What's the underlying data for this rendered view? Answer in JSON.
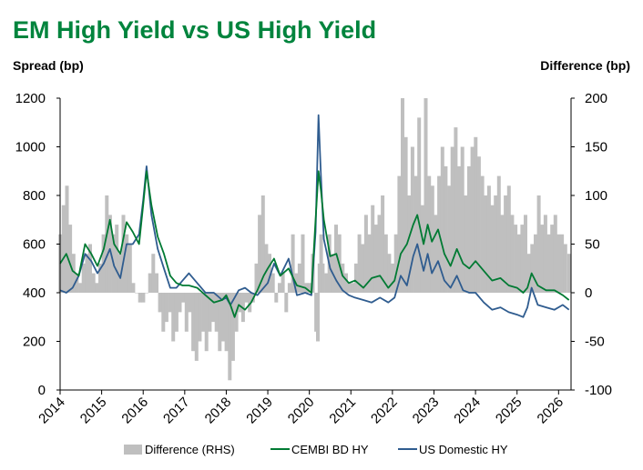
{
  "colors": {
    "title": "#00843D",
    "difference": "#BFBFBF",
    "cembi": "#007A33",
    "us_hy": "#2F5C8F",
    "axis": "#000000"
  },
  "chart_data": {
    "type": "line",
    "title": "EM High Yield vs US High Yield",
    "left_axis_title": "Spread (bp)",
    "right_axis_title": "Difference (bp)",
    "left_ylim": [
      0,
      1200
    ],
    "right_ylim": [
      -100,
      200
    ],
    "left_ticks": [
      "0",
      "200",
      "400",
      "600",
      "800",
      "1000",
      "1200"
    ],
    "right_ticks": [
      "-100",
      "-50",
      "0",
      "50",
      "100",
      "150",
      "200"
    ],
    "x_range": [
      2014,
      2026.3
    ],
    "x_ticks": [
      "2014",
      "2015",
      "2016",
      "2017",
      "2018",
      "2019",
      "2020",
      "2021",
      "2022",
      "2023",
      "2024",
      "2025",
      "2026"
    ],
    "legend": [
      "Difference (RHS)",
      "CEMBI BD HY",
      "US Domestic HY"
    ],
    "series": [
      {
        "name": "CEMBI BD HY",
        "axis": "left",
        "x": [
          2014.0,
          2014.15,
          2014.3,
          2014.45,
          2014.6,
          2014.75,
          2014.9,
          2015.05,
          2015.2,
          2015.3,
          2015.45,
          2015.6,
          2015.75,
          2015.9,
          2016.0,
          2016.08,
          2016.2,
          2016.35,
          2016.5,
          2016.65,
          2016.8,
          2016.95,
          2017.1,
          2017.3,
          2017.5,
          2017.7,
          2017.9,
          2018.0,
          2018.1,
          2018.2,
          2018.3,
          2018.45,
          2018.6,
          2018.75,
          2018.9,
          2019.0,
          2019.15,
          2019.3,
          2019.5,
          2019.7,
          2019.9,
          2020.05,
          2020.15,
          2020.22,
          2020.28,
          2020.35,
          2020.5,
          2020.65,
          2020.8,
          2020.95,
          2021.1,
          2021.3,
          2021.5,
          2021.7,
          2021.9,
          2022.05,
          2022.2,
          2022.35,
          2022.5,
          2022.6,
          2022.75,
          2022.85,
          2022.95,
          2023.1,
          2023.25,
          2023.4,
          2023.55,
          2023.7,
          2023.85,
          2024.0,
          2024.2,
          2024.4,
          2024.6,
          2024.8,
          2025.0,
          2025.15,
          2025.25,
          2025.35,
          2025.5,
          2025.7,
          2025.9,
          2026.1,
          2026.25
        ],
        "values": [
          520,
          560,
          490,
          470,
          600,
          560,
          510,
          580,
          700,
          600,
          560,
          690,
          650,
          600,
          760,
          900,
          760,
          630,
          560,
          470,
          440,
          430,
          430,
          420,
          390,
          360,
          370,
          390,
          350,
          300,
          350,
          330,
          360,
          410,
          470,
          500,
          540,
          470,
          500,
          430,
          420,
          400,
          700,
          900,
          820,
          700,
          550,
          560,
          470,
          440,
          450,
          420,
          460,
          470,
          420,
          450,
          560,
          600,
          680,
          720,
          600,
          680,
          610,
          660,
          560,
          510,
          580,
          520,
          500,
          530,
          490,
          450,
          460,
          430,
          420,
          400,
          420,
          480,
          430,
          410,
          410,
          390,
          370
        ]
      },
      {
        "name": "US Domestic HY",
        "axis": "left",
        "x": [
          2014.0,
          2014.15,
          2014.3,
          2014.45,
          2014.6,
          2014.75,
          2014.9,
          2015.05,
          2015.2,
          2015.3,
          2015.45,
          2015.6,
          2015.75,
          2015.9,
          2016.0,
          2016.08,
          2016.2,
          2016.35,
          2016.5,
          2016.65,
          2016.8,
          2016.95,
          2017.1,
          2017.3,
          2017.5,
          2017.7,
          2017.9,
          2018.0,
          2018.1,
          2018.2,
          2018.3,
          2018.45,
          2018.6,
          2018.75,
          2018.9,
          2019.0,
          2019.15,
          2019.3,
          2019.5,
          2019.7,
          2019.9,
          2020.05,
          2020.15,
          2020.22,
          2020.28,
          2020.35,
          2020.5,
          2020.65,
          2020.8,
          2020.95,
          2021.1,
          2021.3,
          2021.5,
          2021.7,
          2021.9,
          2022.05,
          2022.2,
          2022.35,
          2022.5,
          2022.6,
          2022.75,
          2022.85,
          2022.95,
          2023.1,
          2023.25,
          2023.4,
          2023.55,
          2023.7,
          2023.85,
          2024.0,
          2024.2,
          2024.4,
          2024.6,
          2024.8,
          2025.0,
          2025.15,
          2025.25,
          2025.35,
          2025.5,
          2025.7,
          2025.9,
          2026.1,
          2026.25
        ],
        "values": [
          410,
          400,
          420,
          470,
          560,
          530,
          480,
          520,
          580,
          510,
          460,
          600,
          600,
          640,
          780,
          920,
          720,
          580,
          500,
          420,
          420,
          450,
          480,
          440,
          400,
          400,
          370,
          380,
          350,
          380,
          410,
          420,
          400,
          390,
          420,
          440,
          520,
          470,
          540,
          390,
          400,
          390,
          650,
          1130,
          880,
          620,
          500,
          450,
          410,
          390,
          380,
          370,
          360,
          380,
          360,
          380,
          470,
          430,
          550,
          600,
          490,
          560,
          480,
          530,
          450,
          420,
          470,
          410,
          400,
          400,
          360,
          330,
          340,
          320,
          310,
          300,
          340,
          420,
          350,
          340,
          330,
          350,
          330
        ]
      },
      {
        "name": "Difference (RHS)",
        "axis": "right",
        "kind": "area",
        "x": [
          2014.0,
          2014.08,
          2014.16,
          2014.24,
          2014.32,
          2014.4,
          2014.48,
          2014.56,
          2014.64,
          2014.72,
          2014.8,
          2014.88,
          2014.96,
          2015.04,
          2015.12,
          2015.2,
          2015.28,
          2015.36,
          2015.44,
          2015.52,
          2015.6,
          2015.68,
          2015.76,
          2015.84,
          2015.92,
          2016.0,
          2016.08,
          2016.16,
          2016.24,
          2016.32,
          2016.4,
          2016.48,
          2016.56,
          2016.64,
          2016.72,
          2016.8,
          2016.88,
          2016.96,
          2017.04,
          2017.12,
          2017.2,
          2017.28,
          2017.36,
          2017.44,
          2017.52,
          2017.6,
          2017.68,
          2017.76,
          2017.84,
          2017.92,
          2018.0,
          2018.08,
          2018.16,
          2018.24,
          2018.32,
          2018.4,
          2018.48,
          2018.56,
          2018.64,
          2018.72,
          2018.8,
          2018.88,
          2018.96,
          2019.04,
          2019.12,
          2019.2,
          2019.28,
          2019.36,
          2019.44,
          2019.52,
          2019.6,
          2019.68,
          2019.76,
          2019.84,
          2019.92,
          2020.0,
          2020.08,
          2020.16,
          2020.2,
          2020.24,
          2020.28,
          2020.32,
          2020.4,
          2020.48,
          2020.56,
          2020.64,
          2020.72,
          2020.8,
          2020.88,
          2020.96,
          2021.04,
          2021.12,
          2021.2,
          2021.28,
          2021.36,
          2021.44,
          2021.52,
          2021.6,
          2021.68,
          2021.76,
          2021.84,
          2021.92,
          2022.0,
          2022.08,
          2022.16,
          2022.24,
          2022.32,
          2022.4,
          2022.48,
          2022.56,
          2022.64,
          2022.72,
          2022.8,
          2022.88,
          2022.96,
          2023.04,
          2023.12,
          2023.2,
          2023.28,
          2023.36,
          2023.44,
          2023.52,
          2023.6,
          2023.68,
          2023.76,
          2023.84,
          2023.92,
          2024.0,
          2024.08,
          2024.16,
          2024.24,
          2024.32,
          2024.4,
          2024.48,
          2024.56,
          2024.64,
          2024.72,
          2024.8,
          2024.88,
          2024.96,
          2025.04,
          2025.12,
          2025.2,
          2025.28,
          2025.36,
          2025.44,
          2025.52,
          2025.6,
          2025.68,
          2025.76,
          2025.84,
          2025.92,
          2026.0,
          2026.08,
          2026.16,
          2026.25
        ],
        "values": [
          60,
          90,
          110,
          70,
          40,
          20,
          10,
          30,
          40,
          50,
          20,
          10,
          30,
          60,
          100,
          80,
          60,
          70,
          40,
          80,
          60,
          50,
          10,
          0,
          -10,
          -10,
          0,
          20,
          40,
          20,
          -20,
          -40,
          -30,
          -20,
          -50,
          -40,
          -20,
          -10,
          -40,
          -20,
          -60,
          -70,
          -50,
          -40,
          -60,
          -40,
          -30,
          -40,
          -60,
          -50,
          -60,
          -90,
          -70,
          -40,
          -20,
          -30,
          -10,
          -20,
          -10,
          30,
          80,
          100,
          50,
          40,
          20,
          -10,
          10,
          20,
          -20,
          10,
          60,
          20,
          30,
          60,
          10,
          10,
          40,
          -40,
          -50,
          30,
          60,
          30,
          20,
          60,
          40,
          70,
          60,
          30,
          20,
          10,
          10,
          30,
          60,
          50,
          80,
          60,
          90,
          70,
          80,
          100,
          60,
          40,
          30,
          60,
          120,
          200,
          160,
          100,
          150,
          120,
          180,
          90,
          200,
          120,
          110,
          80,
          120,
          150,
          130,
          110,
          150,
          170,
          130,
          150,
          100,
          130,
          150,
          160,
          140,
          120,
          100,
          110,
          90,
          100,
          120,
          80,
          100,
          110,
          80,
          70,
          60,
          70,
          80,
          40,
          50,
          60,
          100,
          70,
          80,
          60,
          70,
          80,
          60,
          60,
          50,
          40
        ]
      }
    ]
  }
}
